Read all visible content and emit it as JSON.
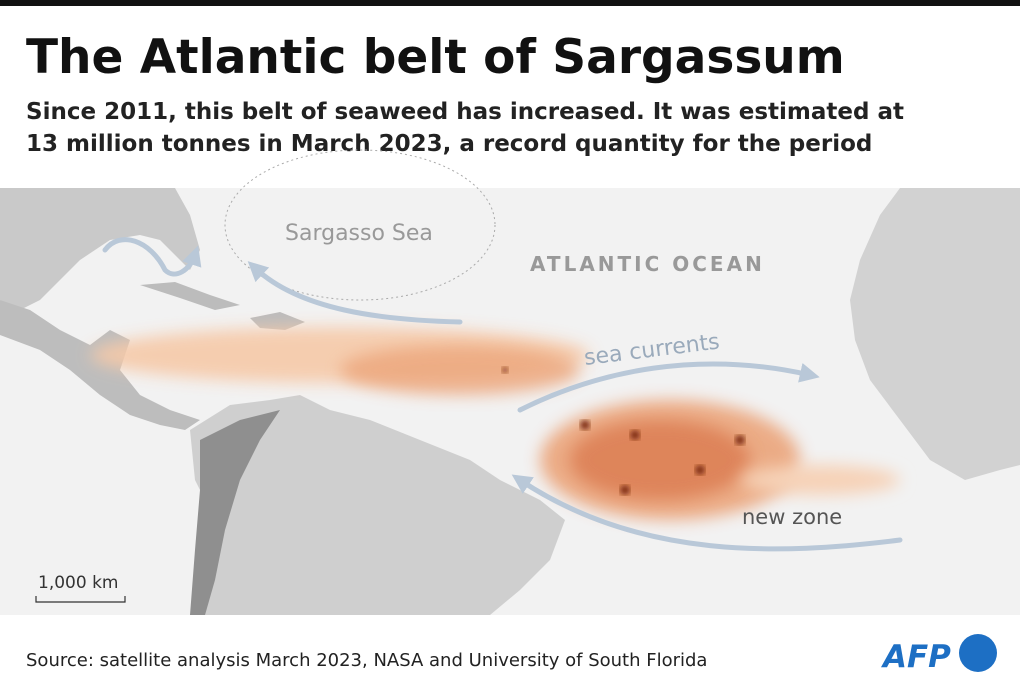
{
  "header": {
    "title": "The Atlantic belt of Sargassum",
    "subtitle": [
      "Since 2011, this belt of seaweed has increased. It was estimated at",
      "13 million tonnes in March 2023, a record quantity for the period"
    ]
  },
  "map": {
    "labels": {
      "sargasso_sea": "Sargasso Sea",
      "ocean": "ATLANTIC OCEAN",
      "currents": "sea currents",
      "new_zone": "new zone"
    },
    "scale": "1,000 km"
  },
  "footer": {
    "source": "Source: satellite analysis March 2023, NASA and University of South Florida",
    "logo": "AFP"
  }
}
